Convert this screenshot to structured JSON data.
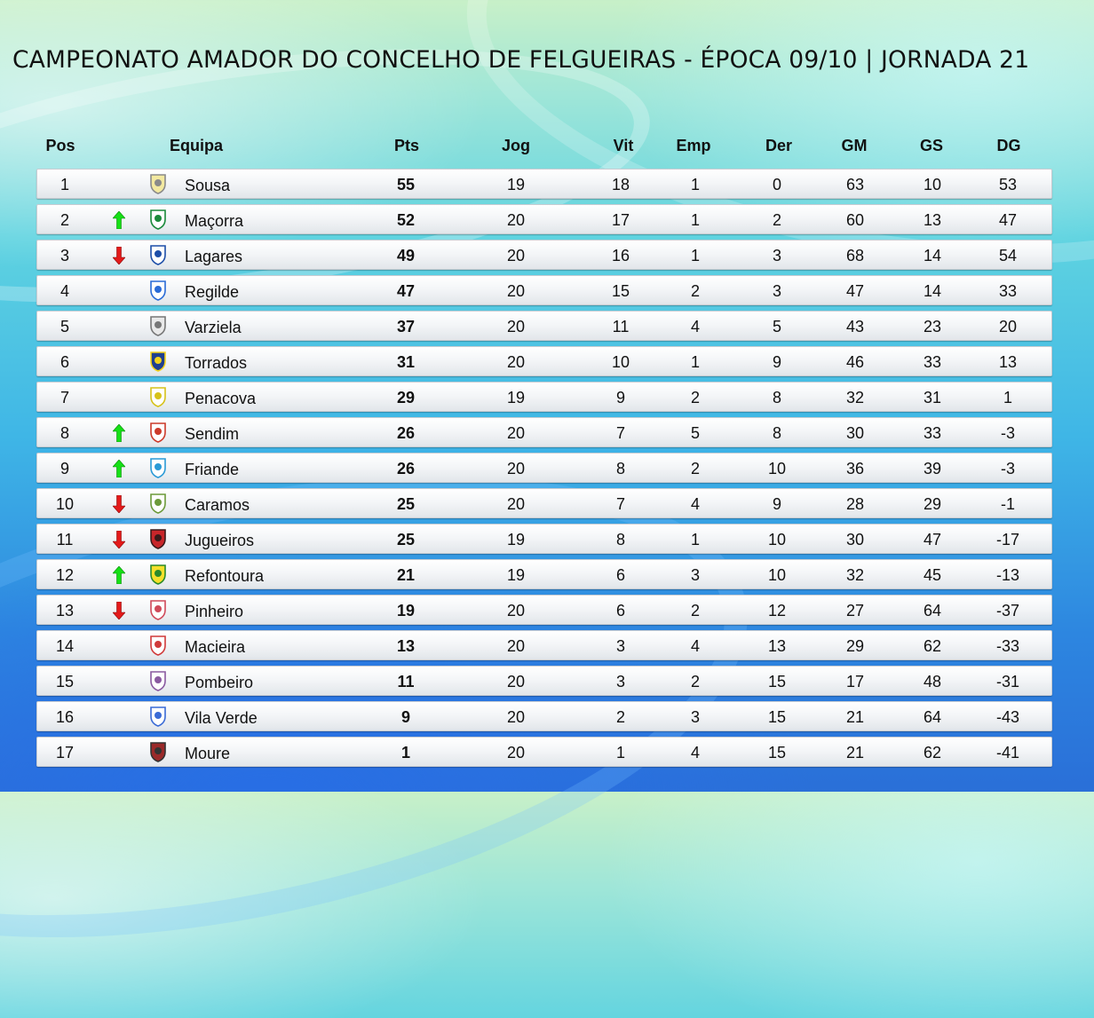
{
  "title": "CAMPEONATO AMADOR DO CONCELHO DE FELGUEIRAS - ÉPOCA 09/10 | JORNADA 21",
  "headers": {
    "pos": "Pos",
    "team": "Equipa",
    "pts": "Pts",
    "jog": "Jog",
    "vit": "Vit",
    "emp": "Emp",
    "der": "Der",
    "gm": "GM",
    "gs": "GS",
    "dg": "DG"
  },
  "colors": {
    "up": "#16e016",
    "down": "#e41a1a"
  },
  "rows": [
    {
      "pos": "1",
      "move": "none",
      "crest": "sousa-crest-icon",
      "team": "Sousa",
      "pts": "55",
      "jog": "19",
      "vit": "18",
      "emp": "1",
      "der": "0",
      "gm": "63",
      "gs": "10",
      "dg": "53"
    },
    {
      "pos": "2",
      "move": "up",
      "crest": "macorra-crest-icon",
      "team": "Maçorra",
      "pts": "52",
      "jog": "20",
      "vit": "17",
      "emp": "1",
      "der": "2",
      "gm": "60",
      "gs": "13",
      "dg": "47"
    },
    {
      "pos": "3",
      "move": "down",
      "crest": "lagares-crest-icon",
      "team": "Lagares",
      "pts": "49",
      "jog": "20",
      "vit": "16",
      "emp": "1",
      "der": "3",
      "gm": "68",
      "gs": "14",
      "dg": "54"
    },
    {
      "pos": "4",
      "move": "none",
      "crest": "regilde-crest-icon",
      "team": "Regilde",
      "pts": "47",
      "jog": "20",
      "vit": "15",
      "emp": "2",
      "der": "3",
      "gm": "47",
      "gs": "14",
      "dg": "33"
    },
    {
      "pos": "5",
      "move": "none",
      "crest": "varziela-crest-icon",
      "team": "Varziela",
      "pts": "37",
      "jog": "20",
      "vit": "11",
      "emp": "4",
      "der": "5",
      "gm": "43",
      "gs": "23",
      "dg": "20"
    },
    {
      "pos": "6",
      "move": "none",
      "crest": "torrados-crest-icon",
      "team": "Torrados",
      "pts": "31",
      "jog": "20",
      "vit": "10",
      "emp": "1",
      "der": "9",
      "gm": "46",
      "gs": "33",
      "dg": "13"
    },
    {
      "pos": "7",
      "move": "none",
      "crest": "penacova-crest-icon",
      "team": "Penacova",
      "pts": "29",
      "jog": "19",
      "vit": "9",
      "emp": "2",
      "der": "8",
      "gm": "32",
      "gs": "31",
      "dg": "1"
    },
    {
      "pos": "8",
      "move": "up",
      "crest": "sendim-crest-icon",
      "team": "Sendim",
      "pts": "26",
      "jog": "20",
      "vit": "7",
      "emp": "5",
      "der": "8",
      "gm": "30",
      "gs": "33",
      "dg": "-3"
    },
    {
      "pos": "9",
      "move": "up",
      "crest": "friande-crest-icon",
      "team": "Friande",
      "pts": "26",
      "jog": "20",
      "vit": "8",
      "emp": "2",
      "der": "10",
      "gm": "36",
      "gs": "39",
      "dg": "-3"
    },
    {
      "pos": "10",
      "move": "down",
      "crest": "caramos-crest-icon",
      "team": "Caramos",
      "pts": "25",
      "jog": "20",
      "vit": "7",
      "emp": "4",
      "der": "9",
      "gm": "28",
      "gs": "29",
      "dg": "-1"
    },
    {
      "pos": "11",
      "move": "down",
      "crest": "jugueiros-crest-icon",
      "team": "Jugueiros",
      "pts": "25",
      "jog": "19",
      "vit": "8",
      "emp": "1",
      "der": "10",
      "gm": "30",
      "gs": "47",
      "dg": "-17"
    },
    {
      "pos": "12",
      "move": "up",
      "crest": "refontoura-crest-icon",
      "team": "Refontoura",
      "pts": "21",
      "jog": "19",
      "vit": "6",
      "emp": "3",
      "der": "10",
      "gm": "32",
      "gs": "45",
      "dg": "-13"
    },
    {
      "pos": "13",
      "move": "down",
      "crest": "pinheiro-crest-icon",
      "team": "Pinheiro",
      "pts": "19",
      "jog": "20",
      "vit": "6",
      "emp": "2",
      "der": "12",
      "gm": "27",
      "gs": "64",
      "dg": "-37"
    },
    {
      "pos": "14",
      "move": "none",
      "crest": "macieira-crest-icon",
      "team": "Macieira",
      "pts": "13",
      "jog": "20",
      "vit": "3",
      "emp": "4",
      "der": "13",
      "gm": "29",
      "gs": "62",
      "dg": "-33"
    },
    {
      "pos": "15",
      "move": "none",
      "crest": "pombeiro-crest-icon",
      "team": "Pombeiro",
      "pts": "11",
      "jog": "20",
      "vit": "3",
      "emp": "2",
      "der": "15",
      "gm": "17",
      "gs": "48",
      "dg": "-31"
    },
    {
      "pos": "16",
      "move": "none",
      "crest": "vila-verde-crest-icon",
      "team": "Vila Verde",
      "pts": "9",
      "jog": "20",
      "vit": "2",
      "emp": "3",
      "der": "15",
      "gm": "21",
      "gs": "64",
      "dg": "-43"
    },
    {
      "pos": "17",
      "move": "none",
      "crest": "moure-crest-icon",
      "team": "Moure",
      "pts": "1",
      "jog": "20",
      "vit": "1",
      "emp": "4",
      "der": "15",
      "gm": "21",
      "gs": "62",
      "dg": "-41"
    }
  ]
}
